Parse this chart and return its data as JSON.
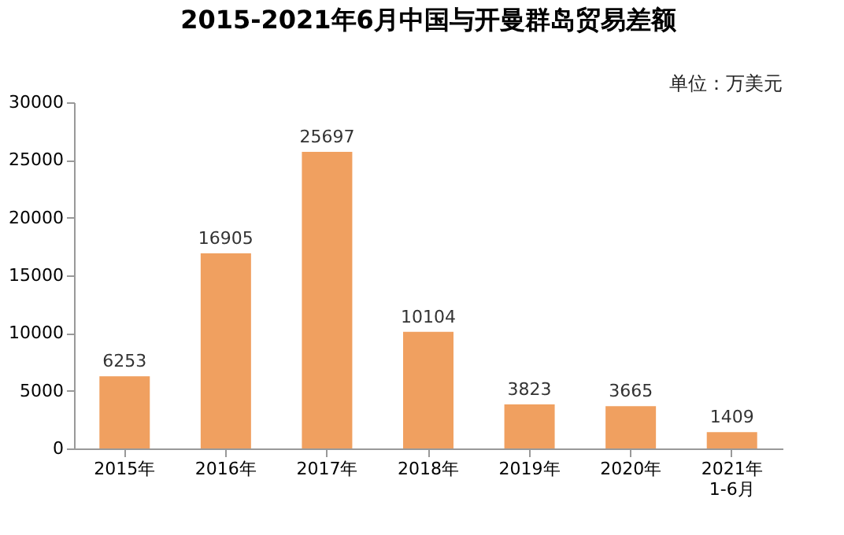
{
  "chart_data": {
    "type": "bar",
    "title": "2015-2021年6月中国与开曼群岛贸易差额",
    "annotations": [
      "单位：万美元"
    ],
    "categories": [
      "2015年",
      "2016年",
      "2017年",
      "2018年",
      "2019年",
      "2020年",
      "2021年\n1-6月"
    ],
    "values": [
      6253,
      16905,
      25697,
      10104,
      3823,
      3665,
      1409
    ],
    "color": "#f0a060",
    "ylim": [
      0,
      30000
    ],
    "yticks": [
      0,
      5000,
      10000,
      15000,
      20000,
      25000,
      30000
    ],
    "grid": false,
    "data_labels": true
  }
}
